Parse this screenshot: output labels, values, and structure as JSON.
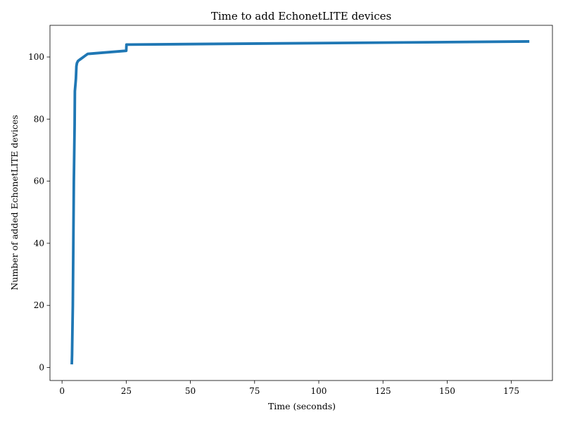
{
  "chart_data": {
    "type": "line",
    "title": "Time to add EchonetLITE devices",
    "xlabel": "Time (seconds)",
    "ylabel": "Number of added EchonetLITE devices",
    "xlim": [
      -4.7,
      191
    ],
    "ylim": [
      -4.2,
      110.2
    ],
    "xticks": [
      0,
      25,
      50,
      75,
      100,
      125,
      150,
      175
    ],
    "yticks": [
      0,
      20,
      40,
      60,
      80,
      100
    ],
    "grid": false,
    "series_color": "#1f77b4",
    "series": [
      {
        "x": [
          3.8,
          3.9,
          4.2,
          4.6,
          4.9,
          5.0,
          5.4,
          5.6,
          5.8,
          6.2,
          7.0,
          8.0,
          9.0,
          10.0,
          25.0,
          25.1,
          26.0,
          182.0
        ],
        "y": [
          1,
          4,
          20,
          60,
          78,
          89,
          93,
          97,
          98,
          98.7,
          99.2,
          99.8,
          100.4,
          101,
          102,
          104,
          104,
          105
        ]
      }
    ]
  }
}
